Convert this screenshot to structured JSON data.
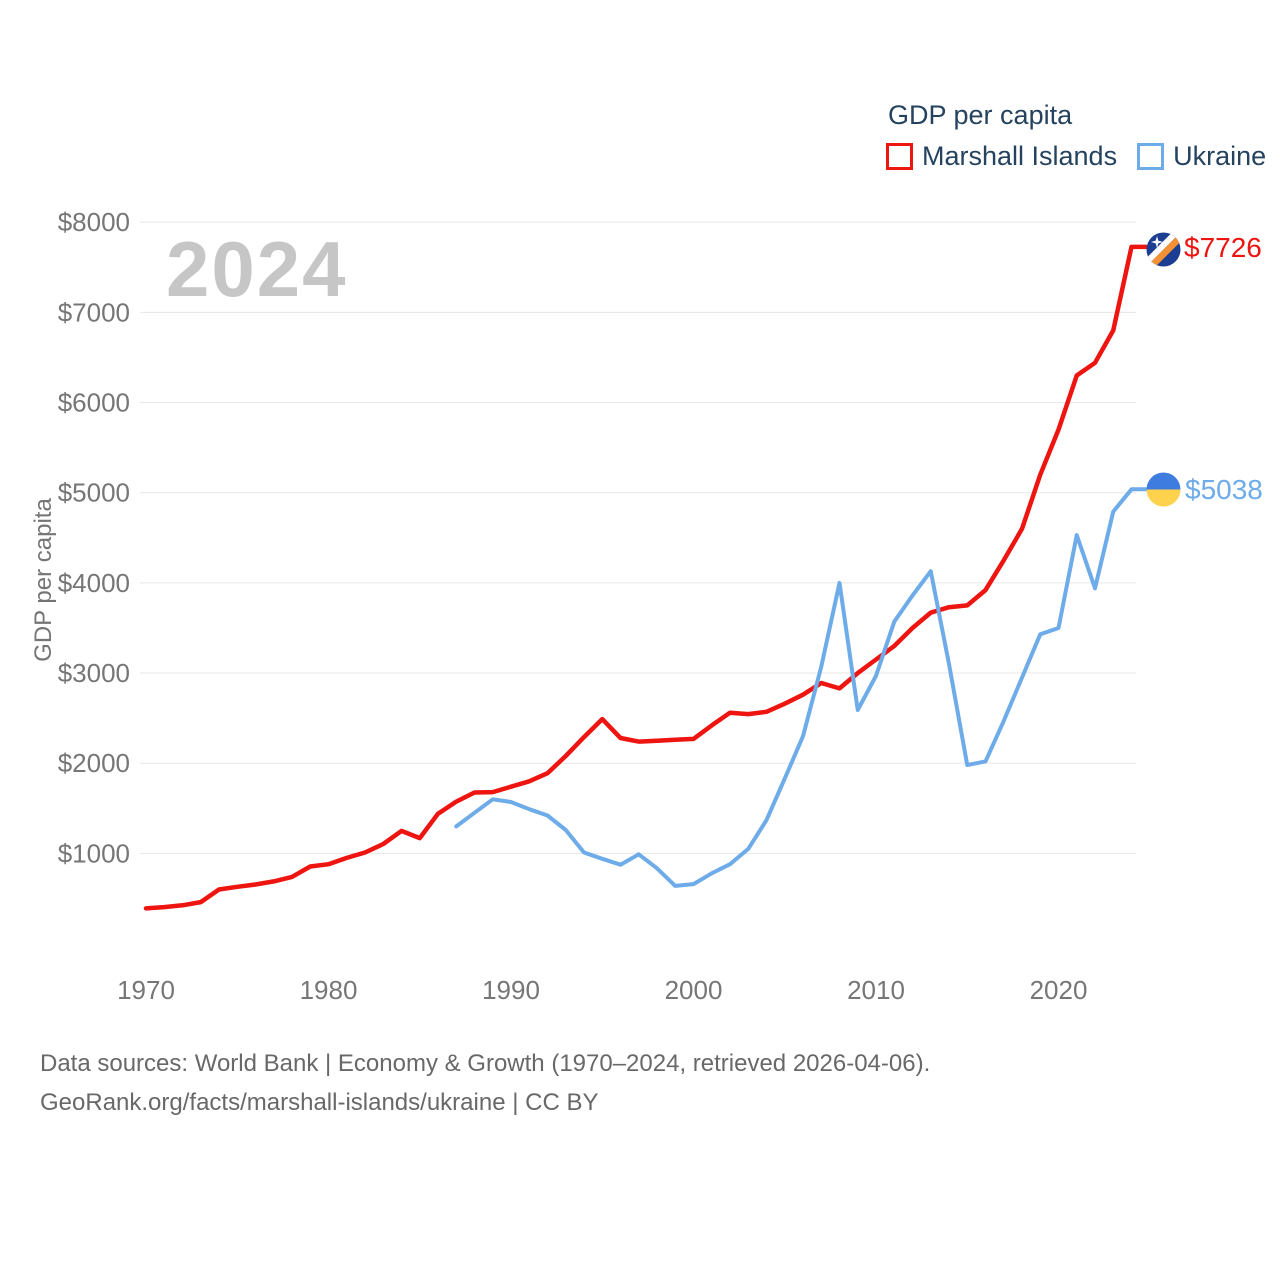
{
  "legend": {
    "title": "GDP per capita",
    "items": [
      {
        "label": "Marshall Islands",
        "color": "#ee1410"
      },
      {
        "label": "Ukraine",
        "color": "#6dabe9"
      }
    ]
  },
  "watermark_year": "2024",
  "y_axis": {
    "title": "GDP per capita"
  },
  "end_labels": {
    "marshall_islands": "$7726",
    "ukraine": "$5038"
  },
  "footer": {
    "line1": "Data sources: World Bank | Economy & Growth (1970–2024, retrieved 2026-04-06).",
    "line2": "GeoRank.org/facts/marshall-islands/ukraine | CC BY"
  },
  "flag_colors": {
    "marshall_islands": {
      "field": "#1b3e92",
      "stripe_white": "#ffffff",
      "stripe_orange": "#f49132",
      "star": "#ffffff"
    },
    "ukraine": {
      "top": "#3e7cdf",
      "bottom": "#ffd24d"
    }
  },
  "chart_data": {
    "type": "line",
    "title": "GDP per capita",
    "grid": "horizontal-only",
    "legend_position": "top-right",
    "x_range": [
      1970,
      2024
    ],
    "y_range": [
      0,
      8000
    ],
    "y_ticks": [
      {
        "label": "$8000",
        "value": 8000
      },
      {
        "label": "$7000",
        "value": 7000
      },
      {
        "label": "$6000",
        "value": 6000
      },
      {
        "label": "$5000",
        "value": 5000
      },
      {
        "label": "$4000",
        "value": 4000
      },
      {
        "label": "$3000",
        "value": 3000
      },
      {
        "label": "$2000",
        "value": 2000
      },
      {
        "label": "$1000",
        "value": 1000
      }
    ],
    "x_ticks": [
      {
        "label": "1970",
        "value": 1970
      },
      {
        "label": "1980",
        "value": 1980
      },
      {
        "label": "1990",
        "value": 1990
      },
      {
        "label": "2000",
        "value": 2000
      },
      {
        "label": "2010",
        "value": 2010
      },
      {
        "label": "2020",
        "value": 2020
      }
    ],
    "series": [
      {
        "name": "Marshall Islands",
        "color": "#ee1410",
        "stroke_width": 4.5,
        "start_year": 1970,
        "end_label": "$7726",
        "end_value": 7726,
        "values": [
          390,
          405,
          425,
          460,
          600,
          630,
          655,
          690,
          740,
          855,
          880,
          950,
          1010,
          1105,
          1250,
          1170,
          1440,
          1575,
          1675,
          1680,
          1740,
          1800,
          1890,
          2080,
          2290,
          2490,
          2280,
          2240,
          2250,
          2260,
          2270,
          2420,
          2560,
          2545,
          2570,
          2660,
          2760,
          2890,
          2830,
          3000,
          3150,
          3300,
          3500,
          3670,
          3730,
          3750,
          3920,
          4250,
          4600,
          5200,
          5700,
          6300,
          6440,
          6800,
          7726
        ]
      },
      {
        "name": "Ukraine",
        "color": "#6dabe9",
        "stroke_width": 4,
        "start_year": 1987,
        "end_label": "$5038",
        "end_value": 5038,
        "values": [
          1300,
          1450,
          1600,
          1570,
          1490,
          1420,
          1260,
          1010,
          940,
          875,
          990,
          835,
          640,
          660,
          780,
          880,
          1050,
          1370,
          1830,
          2300,
          3070,
          4000,
          2590,
          2970,
          3570,
          3860,
          4130,
          3100,
          1980,
          2020,
          2470,
          2950,
          3430,
          3500,
          4530,
          3940,
          4790,
          5038
        ]
      }
    ]
  }
}
